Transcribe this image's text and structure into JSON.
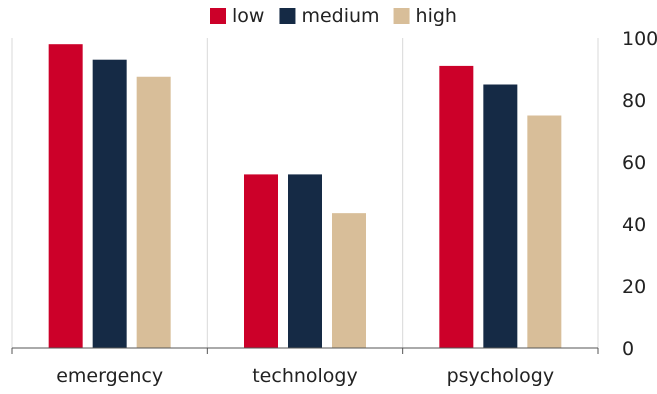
{
  "chart_data": {
    "type": "bar",
    "title": "",
    "xlabel": "",
    "ylabel": "",
    "categories": [
      "emergency",
      "technology",
      "psychology"
    ],
    "series": [
      {
        "name": "low",
        "color": "#CC0029",
        "values": [
          98,
          56,
          91
        ]
      },
      {
        "name": "medium",
        "color": "#152A45",
        "values": [
          93,
          56,
          85
        ]
      },
      {
        "name": "high",
        "color": "#D8BE99",
        "values": [
          87.5,
          43.5,
          75
        ]
      }
    ],
    "ylim": [
      0,
      100
    ],
    "yticks": [
      0,
      20,
      40,
      60,
      80,
      100
    ],
    "y_axis_side": "right",
    "grid": {
      "vertical_separators": true,
      "horizontal": false
    },
    "legend": {
      "placement": "top-center"
    },
    "axis_color": "#555555",
    "grid_color": "#D9D9D9"
  }
}
